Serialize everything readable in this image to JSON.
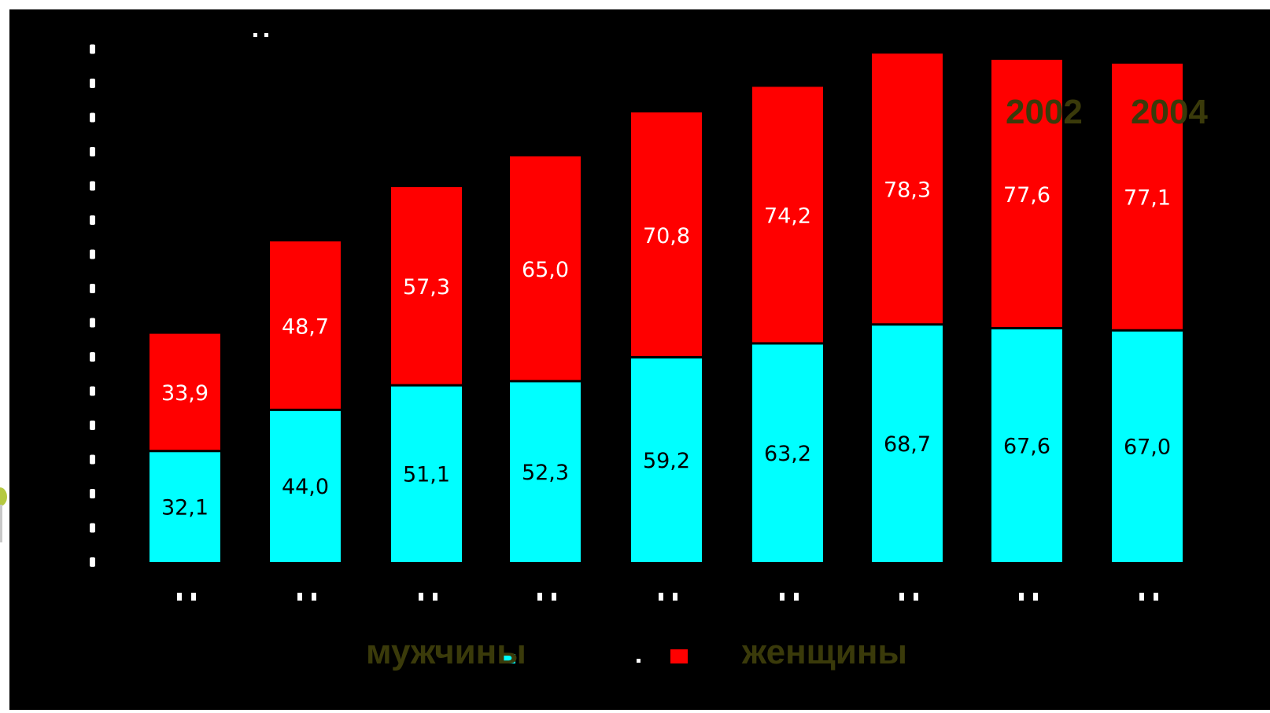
{
  "chart_data": {
    "type": "bar",
    "stacked": true,
    "categories": [
      "",
      "",
      "",
      "",
      "",
      "",
      "",
      "",
      ""
    ],
    "series": [
      {
        "name": "мужчины",
        "color": "#00ffff",
        "values": [
          32.1,
          44.0,
          51.1,
          52.3,
          59.2,
          63.2,
          68.7,
          67.6,
          67.0
        ]
      },
      {
        "name": "женщины",
        "color": "#ff0000",
        "values": [
          33.9,
          48.7,
          57.3,
          65.0,
          70.8,
          74.2,
          78.3,
          77.6,
          77.1
        ]
      }
    ],
    "value_labels": {
      "bottom": [
        "32,1",
        "44,0",
        "51,1",
        "52,3",
        "59,2",
        "63,2",
        "68,7",
        "67,6",
        "67,0"
      ],
      "top": [
        "33,9",
        "48,7",
        "57,3",
        "65,0",
        "70,8",
        "74,2",
        "78,3",
        "77,6",
        "77,1"
      ]
    },
    "bar_label_colors": {
      "bottom": "#000000",
      "top": "#ffffff"
    },
    "ylim": [
      0,
      150
    ],
    "grid": false,
    "legend_position": "bottom"
  },
  "overlay_years": [
    "2002",
    "2004"
  ],
  "legend": {
    "men": "мужчины",
    "women": "женщины"
  },
  "colors": {
    "background": "#000000",
    "overlay_text": "#3a3a0a"
  }
}
